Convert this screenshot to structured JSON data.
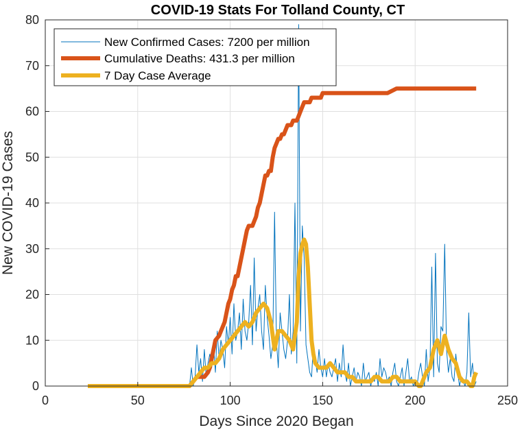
{
  "chart_data": {
    "type": "line",
    "title": "COVID-19 Stats For Tolland County, CT",
    "xlabel": "Days Since 2020 Began",
    "ylabel": "New COVID-19 Cases",
    "xlim": [
      0,
      250
    ],
    "ylim": [
      0,
      80
    ],
    "xticks": [
      0,
      50,
      100,
      150,
      200,
      250
    ],
    "yticks": [
      0,
      10,
      20,
      30,
      40,
      50,
      60,
      70,
      80
    ],
    "grid": true,
    "legend_position": "top-left",
    "series": [
      {
        "name": "New Confirmed Cases: 7200 per million",
        "color": "#0072BD",
        "style": "thin",
        "x": [
          23,
          40,
          60,
          75,
          78,
          79,
          80,
          81,
          82,
          83,
          84,
          85,
          86,
          87,
          88,
          89,
          90,
          91,
          92,
          93,
          94,
          95,
          96,
          97,
          98,
          99,
          100,
          101,
          102,
          103,
          104,
          105,
          106,
          107,
          108,
          109,
          110,
          111,
          112,
          113,
          114,
          115,
          116,
          117,
          118,
          119,
          120,
          121,
          122,
          123,
          124,
          125,
          126,
          127,
          128,
          129,
          130,
          131,
          132,
          133,
          134,
          135,
          136,
          137,
          138,
          139,
          140,
          141,
          142,
          143,
          144,
          145,
          146,
          147,
          148,
          149,
          150,
          151,
          152,
          153,
          154,
          155,
          156,
          157,
          158,
          159,
          160,
          161,
          162,
          163,
          164,
          165,
          166,
          167,
          168,
          169,
          170,
          171,
          172,
          173,
          174,
          175,
          176,
          177,
          178,
          179,
          180,
          181,
          182,
          183,
          184,
          185,
          186,
          187,
          188,
          189,
          190,
          191,
          192,
          193,
          194,
          195,
          196,
          197,
          198,
          199,
          200,
          201,
          202,
          203,
          204,
          205,
          206,
          207,
          208,
          209,
          210,
          211,
          212,
          213,
          214,
          215,
          216,
          217,
          218,
          219,
          220,
          221,
          222,
          223,
          224,
          225,
          226,
          227,
          228,
          229,
          230,
          231,
          232,
          233
        ],
        "values": [
          0,
          0,
          0,
          0,
          0,
          4,
          0,
          2,
          9,
          3,
          6,
          1,
          8,
          2,
          5,
          7,
          4,
          9,
          3,
          12,
          6,
          10,
          8,
          4,
          13,
          9,
          15,
          7,
          18,
          10,
          12,
          16,
          8,
          19,
          12,
          10,
          14,
          22,
          9,
          28,
          12,
          17,
          20,
          12,
          8,
          22,
          15,
          11,
          6,
          9,
          38,
          10,
          4,
          16,
          12,
          8,
          6,
          10,
          20,
          7,
          12,
          40,
          5,
          79,
          12,
          35,
          28,
          9,
          6,
          3,
          2,
          9,
          6,
          3,
          8,
          4,
          2,
          6,
          2,
          5,
          3,
          2,
          4,
          6,
          1,
          5,
          2,
          9,
          3,
          1,
          5,
          0,
          2,
          4,
          1,
          3,
          2,
          0,
          5,
          1,
          2,
          3,
          0,
          2,
          1,
          3,
          0,
          6,
          2,
          4,
          3,
          1,
          2,
          0,
          3,
          5,
          1,
          0,
          2,
          4,
          0,
          3,
          6,
          1,
          2,
          0,
          1,
          0,
          3,
          5,
          2,
          0,
          8,
          1,
          4,
          26,
          2,
          29,
          5,
          3,
          13,
          12,
          31,
          8,
          3,
          6,
          2,
          1,
          7,
          3,
          0,
          2,
          1,
          0,
          3,
          16,
          2,
          5,
          0,
          1
        ]
      },
      {
        "name": "Cumulative Deaths: 431.3 per million",
        "color": "#D95319",
        "style": "thick",
        "x": [
          23,
          40,
          60,
          78,
          80,
          82,
          84,
          86,
          88,
          89,
          90,
          91,
          92,
          94,
          95,
          96,
          97,
          98,
          99,
          100,
          101,
          102,
          103,
          104,
          105,
          106,
          107,
          108,
          109,
          110,
          111,
          112,
          113,
          114,
          115,
          116,
          117,
          118,
          119,
          120,
          121,
          122,
          123,
          124,
          125,
          126,
          127,
          128,
          129,
          130,
          131,
          132,
          133,
          134,
          135,
          136,
          137,
          138,
          139,
          140,
          141,
          142,
          143,
          144,
          145,
          146,
          147,
          148,
          149,
          150,
          151,
          152,
          153,
          154,
          155,
          156,
          157,
          158,
          160,
          162,
          165,
          168,
          170,
          175,
          180,
          185,
          190,
          195,
          200,
          210,
          220,
          225,
          230,
          233
        ],
        "values": [
          0,
          0,
          0,
          0,
          1,
          2,
          2,
          2,
          3,
          4,
          6,
          8,
          10,
          11,
          12,
          13,
          14,
          16,
          18,
          19,
          21,
          22,
          24,
          24,
          26,
          28,
          30,
          32,
          34,
          35,
          35,
          35,
          36,
          37,
          39,
          40,
          42,
          44,
          46,
          46,
          47,
          47,
          50,
          52,
          53,
          54,
          54,
          55,
          55,
          56,
          57,
          57,
          57,
          58,
          58,
          58,
          59,
          60,
          61,
          62,
          62,
          62,
          62,
          63,
          63,
          63,
          63,
          63,
          63,
          64,
          64,
          64,
          64,
          64,
          64,
          64,
          64,
          64,
          64,
          64,
          64,
          64,
          64,
          64,
          64,
          64,
          65,
          65,
          65,
          65,
          65,
          65,
          65,
          65
        ]
      },
      {
        "name": "7 Day Case Average",
        "color": "#EDB120",
        "style": "thick",
        "x": [
          23,
          40,
          60,
          78,
          80,
          82,
          84,
          86,
          88,
          90,
          92,
          94,
          96,
          98,
          100,
          102,
          104,
          106,
          108,
          110,
          112,
          114,
          116,
          118,
          120,
          122,
          124,
          126,
          128,
          130,
          132,
          134,
          136,
          137,
          138,
          139,
          140,
          141,
          142,
          143,
          144,
          145,
          146,
          148,
          150,
          152,
          154,
          156,
          158,
          160,
          162,
          164,
          166,
          168,
          170,
          172,
          174,
          176,
          178,
          180,
          182,
          184,
          186,
          188,
          190,
          192,
          194,
          196,
          198,
          200,
          202,
          203,
          204,
          205,
          206,
          208,
          210,
          212,
          214,
          216,
          218,
          220,
          222,
          224,
          226,
          228,
          230,
          231,
          232,
          233
        ],
        "values": [
          0,
          0,
          0,
          0,
          1,
          2,
          3,
          4,
          4,
          5,
          5,
          6,
          8,
          9,
          10,
          11,
          12,
          13,
          14,
          13,
          14,
          16,
          17,
          18,
          17,
          14,
          8,
          12,
          12,
          11,
          10,
          8,
          14,
          24,
          29,
          31,
          32,
          31,
          26,
          18,
          10,
          7,
          5,
          4,
          4,
          4,
          5,
          4,
          3,
          3,
          3,
          2,
          2,
          1,
          1,
          1,
          1,
          1,
          2,
          2,
          1,
          1,
          1,
          2,
          2,
          1,
          1,
          1,
          1,
          1,
          0,
          0,
          1,
          2,
          3,
          4,
          8,
          10,
          7,
          11,
          8,
          6,
          5,
          2,
          1,
          1,
          0,
          0,
          2,
          3
        ]
      }
    ]
  }
}
